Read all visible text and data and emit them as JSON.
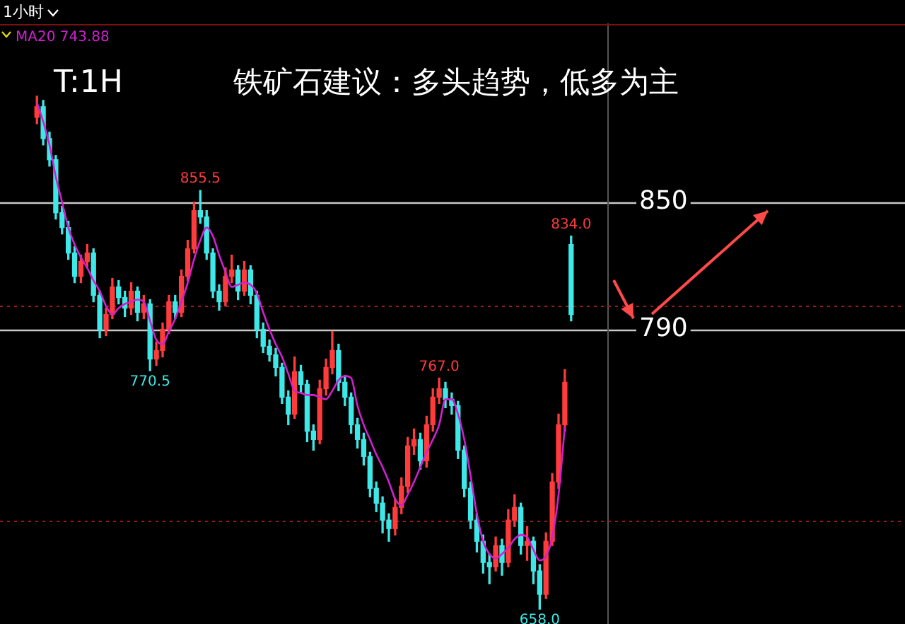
{
  "chart_data": {
    "type": "candlestick",
    "title": "铁矿石建议：多头趋势，低多为主",
    "annotations": [
      "T:1H",
      "1小时"
    ],
    "tick_labels": "y",
    "grid": "y",
    "legend": "top left",
    "yticks": [
      850,
      790
    ],
    "ylim": [
      651,
      934
    ],
    "categories": [
      null,
      null,
      null,
      null,
      null,
      null,
      null,
      null,
      null,
      null,
      null,
      null,
      null,
      null,
      null,
      null,
      null,
      null,
      null,
      null,
      null,
      null,
      null,
      null,
      null,
      null,
      null,
      null,
      null,
      null,
      null,
      null,
      null,
      null,
      null,
      null,
      null,
      null,
      null,
      null,
      null,
      null,
      null,
      null,
      null,
      null,
      null,
      null,
      null,
      null,
      null,
      null,
      null,
      null,
      null,
      null,
      null,
      null,
      null,
      null,
      null,
      null,
      null,
      null,
      null,
      null,
      null,
      null,
      null,
      null,
      null,
      null,
      null,
      null,
      null,
      null,
      null,
      null,
      null,
      null,
      null,
      null,
      null,
      null,
      null,
      null
    ],
    "ohlc": [
      [
        890,
        900,
        887,
        895
      ],
      [
        895,
        898,
        877,
        880
      ],
      [
        880,
        883,
        867,
        870
      ],
      [
        870,
        872,
        842,
        845
      ],
      [
        845,
        848,
        835,
        838
      ],
      [
        838,
        841,
        823,
        826
      ],
      [
        826,
        829,
        812,
        815
      ],
      [
        815,
        825,
        812,
        822
      ],
      [
        822,
        830,
        819,
        826
      ],
      [
        826,
        828,
        803,
        806
      ],
      [
        806,
        808,
        786,
        790
      ],
      [
        790,
        800,
        787,
        797
      ],
      [
        797,
        814,
        795,
        810
      ],
      [
        810,
        813,
        802,
        805
      ],
      [
        805,
        808,
        796,
        800
      ],
      [
        800,
        812,
        797,
        808
      ],
      [
        808,
        810,
        794,
        798
      ],
      [
        798,
        806,
        795,
        802
      ],
      [
        802,
        804,
        770.5,
        776
      ],
      [
        776,
        784,
        773,
        780
      ],
      [
        780,
        793,
        777,
        790
      ],
      [
        790,
        806,
        788,
        803
      ],
      [
        803,
        806,
        795,
        798
      ],
      [
        798,
        818,
        796,
        815
      ],
      [
        815,
        832,
        813,
        828
      ],
      [
        828,
        850,
        826,
        846
      ],
      [
        846,
        855.5,
        840,
        843
      ],
      [
        843,
        846,
        823,
        826
      ],
      [
        826,
        828,
        805,
        808
      ],
      [
        808,
        811,
        799,
        803
      ],
      [
        803,
        819,
        801,
        815
      ],
      [
        815,
        825,
        812,
        818
      ],
      [
        818,
        820,
        804,
        808
      ],
      [
        808,
        822,
        806,
        818
      ],
      [
        818,
        820,
        802,
        806
      ],
      [
        806,
        808,
        786,
        790
      ],
      [
        790,
        793,
        779,
        782
      ],
      [
        782,
        785,
        775,
        778
      ],
      [
        778,
        781,
        768,
        772
      ],
      [
        772,
        774,
        755,
        758
      ],
      [
        758,
        761,
        745,
        750
      ],
      [
        750,
        777,
        748,
        770
      ],
      [
        770,
        773,
        760,
        764
      ],
      [
        764,
        766,
        737,
        742
      ],
      [
        742,
        745,
        733,
        738
      ],
      [
        738,
        766,
        736,
        762
      ],
      [
        762,
        776,
        759,
        772
      ],
      [
        772,
        789,
        769,
        780
      ],
      [
        780,
        783,
        761,
        765
      ],
      [
        765,
        768,
        754,
        758
      ],
      [
        758,
        760,
        741,
        745
      ],
      [
        745,
        748,
        734,
        738
      ],
      [
        738,
        741,
        726,
        730
      ],
      [
        730,
        732,
        711,
        715
      ],
      [
        715,
        718,
        704,
        708
      ],
      [
        708,
        711,
        694,
        700
      ],
      [
        700,
        703,
        690,
        696
      ],
      [
        696,
        710,
        693,
        706
      ],
      [
        706,
        720,
        703,
        716
      ],
      [
        716,
        739,
        713,
        735
      ],
      [
        735,
        743,
        731,
        738
      ],
      [
        738,
        741,
        724,
        728
      ],
      [
        728,
        749,
        725,
        745
      ],
      [
        745,
        762,
        742,
        758
      ],
      [
        758,
        767,
        755,
        762
      ],
      [
        762,
        765,
        753,
        757
      ],
      [
        757,
        760,
        750,
        754
      ],
      [
        754,
        756,
        729,
        733
      ],
      [
        733,
        735,
        711,
        715
      ],
      [
        715,
        718,
        696,
        700
      ],
      [
        700,
        703,
        685,
        690
      ],
      [
        690,
        693,
        675,
        680
      ],
      [
        680,
        684,
        670,
        678
      ],
      [
        678,
        692,
        676,
        688
      ],
      [
        688,
        691,
        674,
        680
      ],
      [
        680,
        705,
        678,
        700
      ],
      [
        700,
        712,
        697,
        706
      ],
      [
        706,
        708,
        684,
        688
      ],
      [
        688,
        697,
        681,
        690
      ],
      [
        690,
        692,
        670,
        676
      ],
      [
        676,
        679,
        658,
        665
      ],
      [
        665,
        694,
        663,
        690
      ],
      [
        690,
        722,
        688,
        718
      ],
      [
        718,
        750,
        715,
        745
      ],
      [
        745,
        771,
        742,
        765
      ],
      [
        830,
        834,
        794,
        797
      ]
    ],
    "colors": [
      "#ff3b3b",
      "#3ee8e8",
      "#3ee8e8",
      "#3ee8e8",
      "#3ee8e8",
      "#3ee8e8",
      "#3ee8e8",
      "#ff3b3b",
      "#ff3b3b",
      "#3ee8e8",
      "#3ee8e8",
      "#ff3b3b",
      "#ff3b3b",
      "#3ee8e8",
      "#3ee8e8",
      "#ff3b3b",
      "#3ee8e8",
      "#ff3b3b",
      "#3ee8e8",
      "#ff3b3b",
      "#ff3b3b",
      "#ff3b3b",
      "#3ee8e8",
      "#ff3b3b",
      "#ff3b3b",
      "#ff3b3b",
      "#3ee8e8",
      "#3ee8e8",
      "#3ee8e8",
      "#3ee8e8",
      "#ff3b3b",
      "#ff3b3b",
      "#3ee8e8",
      "#ff3b3b",
      "#3ee8e8",
      "#3ee8e8",
      "#3ee8e8",
      "#3ee8e8",
      "#3ee8e8",
      "#3ee8e8",
      "#3ee8e8",
      "#ff3b3b",
      "#3ee8e8",
      "#3ee8e8",
      "#3ee8e8",
      "#ff3b3b",
      "#ff3b3b",
      "#ff3b3b",
      "#3ee8e8",
      "#3ee8e8",
      "#3ee8e8",
      "#3ee8e8",
      "#3ee8e8",
      "#3ee8e8",
      "#3ee8e8",
      "#3ee8e8",
      "#3ee8e8",
      "#ff3b3b",
      "#ff3b3b",
      "#ff3b3b",
      "#ff3b3b",
      "#3ee8e8",
      "#ff3b3b",
      "#ff3b3b",
      "#ff3b3b",
      "#3ee8e8",
      "#3ee8e8",
      "#3ee8e8",
      "#3ee8e8",
      "#3ee8e8",
      "#3ee8e8",
      "#3ee8e8",
      "#3ee8e8",
      "#ff3b3b",
      "#3ee8e8",
      "#ff3b3b",
      "#ff3b3b",
      "#3ee8e8",
      "#ff3b3b",
      "#3ee8e8",
      "#3ee8e8",
      "#ff3b3b",
      "#ff3b3b",
      "#ff3b3b",
      "#ff3b3b",
      "#3ee8e8"
    ],
    "value_labels": [
      null,
      null,
      null,
      null,
      null,
      null,
      null,
      null,
      null,
      null,
      null,
      null,
      null,
      null,
      null,
      null,
      null,
      null,
      "770.5",
      null,
      null,
      null,
      null,
      null,
      null,
      null,
      "855.5",
      null,
      null,
      null,
      null,
      null,
      null,
      null,
      null,
      null,
      null,
      null,
      null,
      null,
      null,
      null,
      null,
      null,
      null,
      null,
      null,
      null,
      null,
      null,
      null,
      null,
      null,
      null,
      null,
      null,
      null,
      null,
      null,
      null,
      null,
      null,
      null,
      null,
      "767.0",
      null,
      null,
      null,
      null,
      null,
      null,
      null,
      null,
      null,
      null,
      null,
      null,
      null,
      null,
      null,
      "658.0",
      null,
      null,
      null,
      null,
      "834.0"
    ],
    "series": [
      {
        "name": "MA20 743.88",
        "type": "line",
        "color": "#d020d0",
        "values": [
          897,
          888,
          877,
          862,
          850,
          838,
          830,
          824,
          819,
          813,
          808,
          801,
          797,
          800,
          802,
          803,
          804,
          803,
          794,
          785,
          783,
          789,
          795,
          803,
          812,
          823,
          832,
          838,
          834,
          825,
          817,
          810,
          811,
          812,
          811,
          807,
          798,
          790,
          783,
          777,
          769,
          761,
          760,
          759,
          759,
          758,
          757,
          761,
          766,
          768,
          767,
          754,
          745,
          738,
          731,
          725,
          718,
          710,
          707,
          712,
          718,
          725,
          732,
          738,
          745,
          757,
          757,
          750,
          738,
          721,
          703,
          690,
          684,
          682,
          684,
          687,
          691,
          693,
          692,
          686,
          681,
          683,
          692,
          712,
          744,
          null
        ]
      }
    ],
    "ref_lines": [
      {
        "axis": "y",
        "value": 801,
        "color": "#9a1c1c",
        "line_style": "dotted"
      },
      {
        "axis": "y",
        "value": 700,
        "color": "#9a1c1c",
        "line_style": "dotted"
      }
    ]
  }
}
